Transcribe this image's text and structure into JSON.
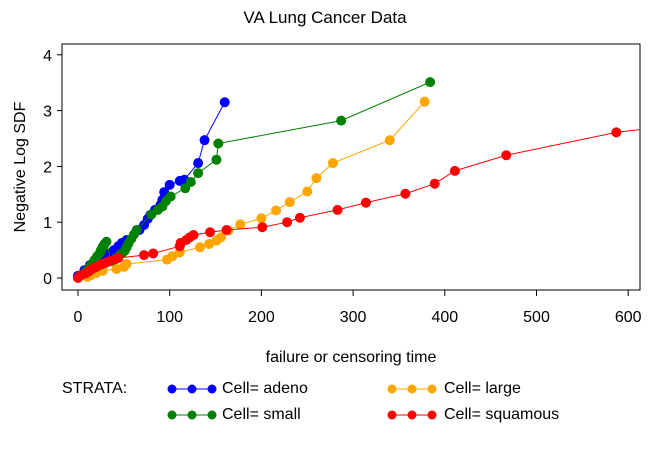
{
  "chart_data": {
    "type": "line",
    "title": "VA Lung Cancer Data",
    "xlabel": "failure or censoring time",
    "ylabel": "Negative Log SDF",
    "xlim": [
      -18,
      613
    ],
    "ylim": [
      -0.25,
      4.15
    ],
    "xticks": [
      0,
      100,
      200,
      300,
      400,
      500,
      600
    ],
    "yticks": [
      0,
      1,
      2,
      3,
      4
    ],
    "grid": false,
    "legend_title": "STRATA:",
    "legend_position": "bottom",
    "series": [
      {
        "name": "Cell= adeno",
        "color": "#0000ff",
        "x": [
          0,
          7,
          13,
          19,
          26,
          33,
          39,
          44,
          48,
          53,
          67,
          72,
          76,
          79,
          84,
          90,
          92,
          94,
          100,
          111,
          116,
          131,
          138,
          160
        ],
        "y": [
          0.04,
          0.14,
          0.23,
          0.29,
          0.36,
          0.43,
          0.5,
          0.57,
          0.63,
          0.68,
          0.86,
          0.95,
          1.06,
          1.13,
          1.22,
          1.31,
          1.4,
          1.54,
          1.67,
          1.74,
          1.76,
          2.06,
          2.47,
          3.15
        ]
      },
      {
        "name": "Cell= small",
        "color": "#008000",
        "x": [
          2,
          8,
          12,
          15,
          18,
          21,
          24,
          25,
          27,
          29,
          31,
          36,
          42,
          45,
          48,
          51,
          53,
          55,
          58,
          61,
          64,
          80,
          87,
          92,
          96,
          101,
          117,
          123,
          131,
          151,
          153,
          287,
          384
        ],
        "y": [
          0.04,
          0.11,
          0.18,
          0.25,
          0.32,
          0.39,
          0.45,
          0.5,
          0.56,
          0.61,
          0.65,
          0.3,
          0.35,
          0.4,
          0.44,
          0.49,
          0.55,
          0.62,
          0.7,
          0.78,
          0.86,
          1.14,
          1.22,
          1.28,
          1.38,
          1.46,
          1.61,
          1.72,
          1.88,
          2.12,
          2.41,
          2.82,
          3.51
        ]
      },
      {
        "name": "Cell= large",
        "color": "#ffa500",
        "x": [
          10,
          14,
          20,
          27,
          42,
          50,
          53,
          97,
          103,
          111,
          133,
          143,
          151,
          156,
          164,
          177,
          200,
          216,
          231,
          250,
          260,
          278,
          340,
          378
        ],
        "y": [
          0.02,
          0.05,
          0.09,
          0.13,
          0.16,
          0.2,
          0.25,
          0.33,
          0.39,
          0.46,
          0.55,
          0.61,
          0.67,
          0.73,
          0.85,
          0.96,
          1.07,
          1.21,
          1.36,
          1.55,
          1.79,
          2.06,
          2.47,
          3.16
        ]
      },
      {
        "name": "Cell= squamous",
        "color": "#ff0000",
        "x": [
          0,
          3,
          8,
          12,
          15,
          19,
          22,
          25,
          30,
          34,
          40,
          44,
          72,
          82,
          111,
          112,
          118,
          122,
          126,
          144,
          162,
          201,
          228,
          242,
          283,
          314,
          357,
          389,
          411,
          467,
          587,
          613
        ],
        "y": [
          0.0,
          0.05,
          0.08,
          0.12,
          0.16,
          0.19,
          0.22,
          0.24,
          0.27,
          0.3,
          0.33,
          0.36,
          0.41,
          0.44,
          0.57,
          0.63,
          0.68,
          0.73,
          0.77,
          0.82,
          0.86,
          0.91,
          1.0,
          1.08,
          1.22,
          1.35,
          1.51,
          1.69,
          1.92,
          2.2,
          2.61,
          2.66
        ]
      }
    ]
  },
  "legend": {
    "title": "STRATA:",
    "items": [
      "Cell= adeno",
      "Cell= small",
      "Cell= large",
      "Cell= squamous"
    ]
  }
}
